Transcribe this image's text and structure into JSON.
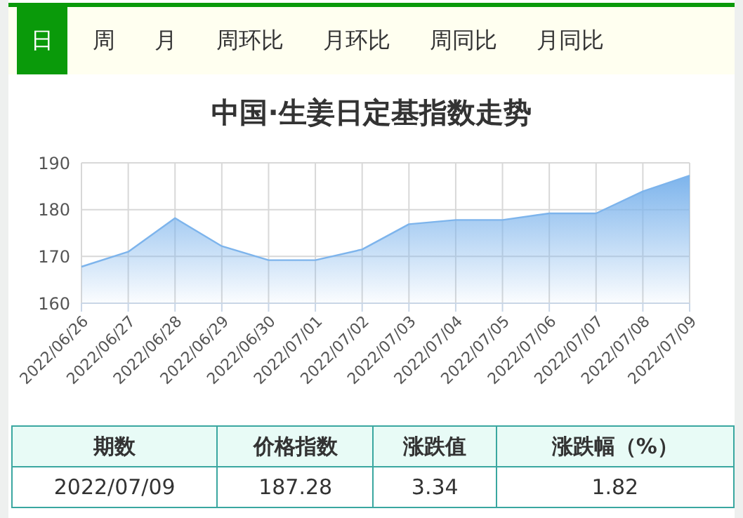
{
  "chart_data": {
    "type": "area",
    "title": "中国·生姜日定基指数走势",
    "categories": [
      "2022/06/26",
      "2022/06/27",
      "2022/06/28",
      "2022/06/29",
      "2022/06/30",
      "2022/07/01",
      "2022/07/02",
      "2022/07/03",
      "2022/07/04",
      "2022/07/05",
      "2022/07/06",
      "2022/07/07",
      "2022/07/08",
      "2022/07/09"
    ],
    "series": [
      {
        "color": "#7db4ec",
        "values": [
          167.8,
          171.0,
          178.2,
          172.2,
          169.2,
          169.2,
          171.5,
          176.9,
          177.8,
          177.8,
          179.2,
          179.2,
          183.9,
          187.28
        ]
      }
    ],
    "ylim": [
      160,
      190
    ],
    "yticks": [
      160,
      170,
      180,
      190
    ],
    "grid": true,
    "annotations": [
      "日",
      "周",
      "月",
      "周环比",
      "月环比",
      "周同比",
      "月同比",
      "期数",
      "价格指数",
      "涨跌值",
      "涨跌幅（%）",
      "2022/07/09",
      "187.28",
      "3.34",
      "1.82"
    ]
  }
}
